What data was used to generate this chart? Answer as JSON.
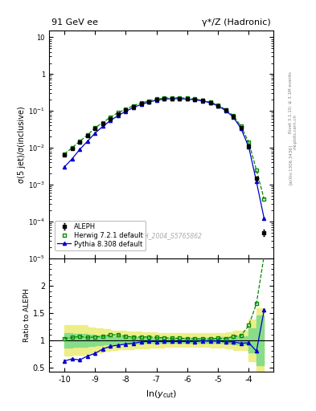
{
  "title_left": "91 GeV ee",
  "title_right": "γ*/Z (Hadronic)",
  "ylabel_main": "σ(5 jet)/σ(inclusive)",
  "ylabel_ratio": "Ratio to ALEPH",
  "xlabel": "ln(y_{cut})",
  "watermark": "ALEPH_2004_S5765862",
  "right_label": "Rivet 3.1.10; ≥ 3.1M events",
  "side_label": "mcplots.cern.ch",
  "arxiv_label": "[arXiv:1306.3436]",
  "xmin": -10.5,
  "xmax": -3.2,
  "ylim_main": [
    1e-05,
    15.0
  ],
  "ylim_ratio": [
    0.42,
    2.5
  ],
  "aleph_x": [
    -10.0,
    -9.75,
    -9.5,
    -9.25,
    -9.0,
    -8.75,
    -8.5,
    -8.25,
    -8.0,
    -7.75,
    -7.5,
    -7.25,
    -7.0,
    -6.75,
    -6.5,
    -6.25,
    -6.0,
    -5.75,
    -5.5,
    -5.25,
    -5.0,
    -4.75,
    -4.5,
    -4.25,
    -4.0,
    -3.75,
    -3.5
  ],
  "aleph_y": [
    0.0065,
    0.0095,
    0.014,
    0.021,
    0.033,
    0.045,
    0.062,
    0.082,
    0.105,
    0.132,
    0.155,
    0.178,
    0.2,
    0.215,
    0.22,
    0.22,
    0.215,
    0.205,
    0.19,
    0.168,
    0.14,
    0.105,
    0.07,
    0.035,
    0.011,
    0.0015,
    5e-05
  ],
  "aleph_yerr": [
    0.0004,
    0.0006,
    0.0008,
    0.0012,
    0.0018,
    0.0025,
    0.0035,
    0.0045,
    0.0055,
    0.007,
    0.008,
    0.009,
    0.01,
    0.01,
    0.01,
    0.01,
    0.01,
    0.009,
    0.009,
    0.008,
    0.007,
    0.0055,
    0.004,
    0.0025,
    0.0008,
    0.00015,
    1e-05
  ],
  "herwig_x": [
    -10.0,
    -9.75,
    -9.5,
    -9.25,
    -9.0,
    -8.75,
    -8.5,
    -8.25,
    -8.0,
    -7.75,
    -7.5,
    -7.25,
    -7.0,
    -6.75,
    -6.5,
    -6.25,
    -6.0,
    -5.75,
    -5.5,
    -5.25,
    -5.0,
    -4.75,
    -4.5,
    -4.25,
    -4.0,
    -3.75,
    -3.5
  ],
  "herwig_y": [
    0.0068,
    0.01,
    0.015,
    0.022,
    0.035,
    0.048,
    0.068,
    0.09,
    0.112,
    0.14,
    0.165,
    0.188,
    0.21,
    0.225,
    0.228,
    0.228,
    0.222,
    0.21,
    0.195,
    0.172,
    0.145,
    0.108,
    0.075,
    0.038,
    0.014,
    0.0025,
    0.0004
  ],
  "pythia_x": [
    -10.0,
    -9.75,
    -9.5,
    -9.25,
    -9.0,
    -8.75,
    -8.5,
    -8.25,
    -8.0,
    -7.75,
    -7.5,
    -7.25,
    -7.0,
    -6.75,
    -6.5,
    -6.25,
    -6.0,
    -5.75,
    -5.5,
    -5.25,
    -5.0,
    -4.75,
    -4.5,
    -4.25,
    -4.0,
    -3.75,
    -3.5
  ],
  "pythia_y": [
    0.003,
    0.005,
    0.009,
    0.015,
    0.025,
    0.038,
    0.055,
    0.075,
    0.098,
    0.125,
    0.15,
    0.175,
    0.195,
    0.21,
    0.215,
    0.215,
    0.21,
    0.2,
    0.188,
    0.165,
    0.138,
    0.102,
    0.068,
    0.033,
    0.0105,
    0.0012,
    0.00012
  ],
  "herwig_ratio": [
    1.03,
    1.05,
    1.07,
    1.05,
    1.06,
    1.07,
    1.1,
    1.1,
    1.07,
    1.06,
    1.06,
    1.06,
    1.05,
    1.047,
    1.036,
    1.036,
    1.033,
    1.024,
    1.026,
    1.024,
    1.036,
    1.029,
    1.071,
    1.086,
    1.27,
    1.67,
    2.55
  ],
  "pythia_ratio": [
    0.62,
    0.66,
    0.64,
    0.71,
    0.76,
    0.84,
    0.89,
    0.91,
    0.93,
    0.945,
    0.97,
    0.982,
    0.975,
    0.977,
    0.977,
    0.977,
    0.977,
    0.975,
    0.99,
    0.982,
    0.986,
    0.971,
    0.971,
    0.943,
    0.955,
    0.8,
    1.55
  ],
  "green_band_xlo": [
    -10.0,
    -9.75,
    -9.5,
    -9.25,
    -9.0,
    -8.75,
    -8.5,
    -8.25,
    -8.0,
    -7.75,
    -7.5,
    -7.25,
    -7.0,
    -6.75,
    -6.5,
    -6.25,
    -6.0,
    -5.75,
    -5.5,
    -5.25,
    -5.0,
    -4.75,
    -4.5,
    -4.25,
    -4.0,
    -3.75
  ],
  "green_band_xhi": [
    -9.75,
    -9.5,
    -9.25,
    -9.0,
    -8.75,
    -8.5,
    -8.25,
    -8.0,
    -7.75,
    -7.5,
    -7.25,
    -7.0,
    -6.75,
    -6.5,
    -6.25,
    -6.0,
    -5.75,
    -5.5,
    -5.25,
    -5.0,
    -4.75,
    -4.5,
    -4.25,
    -4.0,
    -3.75,
    -3.5
  ],
  "green_band_lo": [
    0.87,
    0.88,
    0.88,
    0.9,
    0.91,
    0.92,
    0.93,
    0.935,
    0.94,
    0.945,
    0.95,
    0.955,
    0.96,
    0.96,
    0.96,
    0.96,
    0.96,
    0.96,
    0.96,
    0.955,
    0.95,
    0.94,
    0.93,
    0.93,
    0.78,
    0.55
  ],
  "green_band_hi": [
    1.13,
    1.12,
    1.12,
    1.1,
    1.09,
    1.08,
    1.07,
    1.065,
    1.06,
    1.055,
    1.05,
    1.045,
    1.04,
    1.04,
    1.04,
    1.04,
    1.04,
    1.04,
    1.04,
    1.045,
    1.05,
    1.06,
    1.07,
    1.07,
    1.22,
    1.45
  ],
  "yellow_band_lo": [
    0.72,
    0.73,
    0.73,
    0.76,
    0.78,
    0.8,
    0.82,
    0.83,
    0.84,
    0.845,
    0.85,
    0.86,
    0.87,
    0.875,
    0.875,
    0.875,
    0.875,
    0.875,
    0.875,
    0.87,
    0.865,
    0.85,
    0.82,
    0.82,
    0.62,
    0.42
  ],
  "yellow_band_hi": [
    1.28,
    1.27,
    1.27,
    1.24,
    1.22,
    1.2,
    1.18,
    1.17,
    1.16,
    1.155,
    1.15,
    1.14,
    1.13,
    1.125,
    1.125,
    1.125,
    1.125,
    1.125,
    1.125,
    1.13,
    1.135,
    1.15,
    1.18,
    1.18,
    1.38,
    1.58
  ],
  "aleph_color": "#000000",
  "herwig_color": "#008800",
  "pythia_color": "#0000cc",
  "green_band_color": "#88dd88",
  "yellow_band_color": "#eeee88",
  "legend_labels": [
    "ALEPH",
    "Herwig 7.2.1 default",
    "Pythia 8.308 default"
  ]
}
